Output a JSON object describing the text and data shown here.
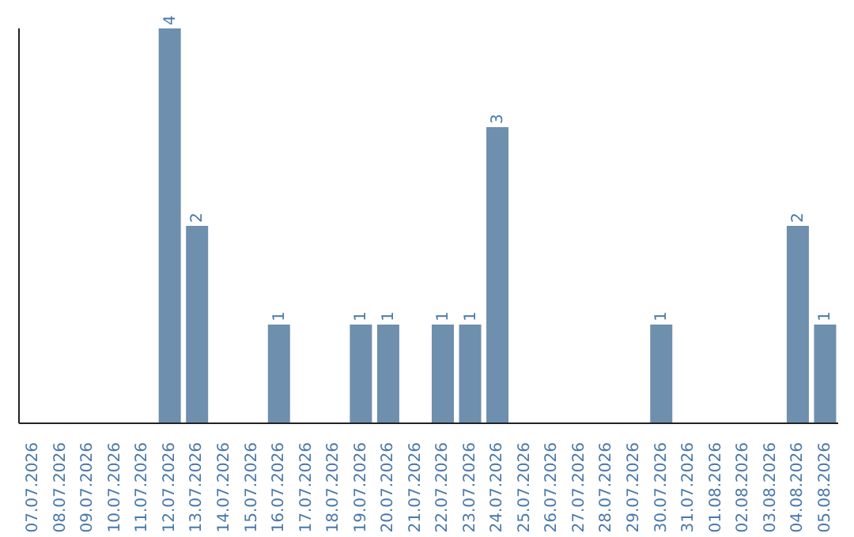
{
  "chart_data": {
    "type": "bar",
    "categories": [
      "07.07.2026",
      "08.07.2026",
      "09.07.2026",
      "10.07.2026",
      "11.07.2026",
      "12.07.2026",
      "13.07.2026",
      "14.07.2026",
      "15.07.2026",
      "16.07.2026",
      "17.07.2026",
      "18.07.2026",
      "19.07.2026",
      "20.07.2026",
      "21.07.2026",
      "22.07.2026",
      "23.07.2026",
      "24.07.2026",
      "25.07.2026",
      "26.07.2026",
      "27.07.2026",
      "28.07.2026",
      "29.07.2026",
      "30.07.2026",
      "31.07.2026",
      "01.08.2026",
      "02.08.2026",
      "03.08.2026",
      "04.08.2026",
      "05.08.2026"
    ],
    "values": [
      0,
      0,
      0,
      0,
      0,
      4,
      2,
      0,
      0,
      1,
      0,
      0,
      1,
      1,
      0,
      1,
      1,
      3,
      0,
      0,
      0,
      0,
      0,
      1,
      0,
      0,
      0,
      0,
      2,
      1
    ],
    "value_labels": [
      null,
      null,
      null,
      null,
      null,
      "4",
      "2",
      null,
      null,
      "1",
      null,
      null,
      "1",
      "1",
      null,
      "1",
      "1",
      "3",
      null,
      null,
      null,
      null,
      null,
      "1",
      null,
      null,
      null,
      null,
      "2",
      "1"
    ],
    "color": "#6e8fad",
    "grid": false,
    "legend": false
  }
}
